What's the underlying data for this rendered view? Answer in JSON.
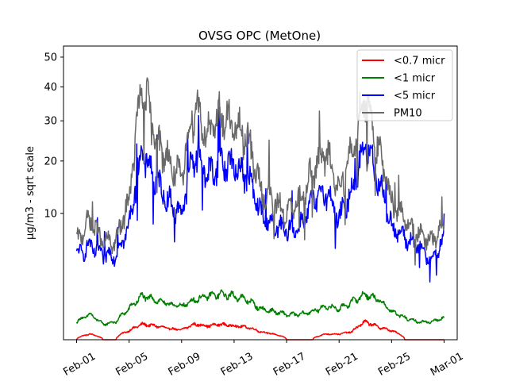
{
  "chart_data": {
    "type": "line",
    "title": "OVSG OPC (MetOne)",
    "xlabel": "",
    "ylabel": "µg/m3 - sqrt scale",
    "y_scale": "sqrt",
    "ylim": [
      0,
      54
    ],
    "xlim": [
      "2021-01-31",
      "2021-03-02"
    ],
    "y_ticks": [
      10,
      20,
      30,
      40,
      50
    ],
    "x_ticks": [
      {
        "date": "2021-02-01",
        "label": "Feb-01"
      },
      {
        "date": "2021-02-05",
        "label": "Feb-05"
      },
      {
        "date": "2021-02-09",
        "label": "Feb-09"
      },
      {
        "date": "2021-02-13",
        "label": "Feb-13"
      },
      {
        "date": "2021-02-17",
        "label": "Feb-17"
      },
      {
        "date": "2021-02-21",
        "label": "Feb-21"
      },
      {
        "date": "2021-02-25",
        "label": "Feb-25"
      },
      {
        "date": "2021-03-01",
        "label": "Mar-01"
      }
    ],
    "grid": false,
    "legend_position": "top-right",
    "series": [
      {
        "name": "<0.7 micr",
        "color": "#ff0000",
        "x": [
          "2021-02-01",
          "2021-02-02",
          "2021-02-03",
          "2021-02-04",
          "2021-02-05",
          "2021-02-06",
          "2021-02-07",
          "2021-02-08",
          "2021-02-09",
          "2021-02-10",
          "2021-02-11",
          "2021-02-12",
          "2021-02-13",
          "2021-02-14",
          "2021-02-15",
          "2021-02-16",
          "2021-02-17",
          "2021-02-18",
          "2021-02-19",
          "2021-02-20",
          "2021-02-21",
          "2021-02-22",
          "2021-02-23",
          "2021-02-24",
          "2021-02-25",
          "2021-02-26",
          "2021-02-27",
          "2021-02-28",
          "2021-03-01"
        ],
        "values": [
          0.0,
          0.02,
          0.0,
          0.0,
          0.05,
          0.15,
          0.12,
          0.08,
          0.06,
          0.15,
          0.12,
          0.15,
          0.12,
          0.1,
          0.04,
          0.02,
          0.0,
          0.0,
          0.0,
          0.02,
          0.02,
          0.04,
          0.2,
          0.1,
          0.05,
          0.0,
          0.0,
          0.0,
          0.0
        ]
      },
      {
        "name": "<1 micr",
        "color": "#008000",
        "x": [
          "2021-02-01",
          "2021-02-02",
          "2021-02-03",
          "2021-02-04",
          "2021-02-05",
          "2021-02-06",
          "2021-02-07",
          "2021-02-08",
          "2021-02-09",
          "2021-02-10",
          "2021-02-11",
          "2021-02-12",
          "2021-02-13",
          "2021-02-14",
          "2021-02-15",
          "2021-02-16",
          "2021-02-17",
          "2021-02-18",
          "2021-02-19",
          "2021-02-20",
          "2021-02-21",
          "2021-02-22",
          "2021-02-23",
          "2021-02-24",
          "2021-02-25",
          "2021-02-26",
          "2021-02-27",
          "2021-02-28",
          "2021-03-01"
        ],
        "values": [
          0.2,
          0.4,
          0.15,
          0.2,
          0.6,
          1.2,
          1.0,
          0.8,
          0.7,
          1.0,
          1.2,
          1.3,
          1.2,
          1.0,
          0.6,
          0.5,
          0.4,
          0.4,
          0.5,
          0.7,
          0.6,
          0.9,
          1.3,
          1.0,
          0.5,
          0.3,
          0.2,
          0.2,
          0.3
        ]
      },
      {
        "name": "<5 micr",
        "color": "#0000ff",
        "x": [
          "2021-02-01",
          "2021-02-02",
          "2021-02-03",
          "2021-02-04",
          "2021-02-05",
          "2021-02-06",
          "2021-02-07",
          "2021-02-08",
          "2021-02-09",
          "2021-02-10",
          "2021-02-11",
          "2021-02-12",
          "2021-02-13",
          "2021-02-14",
          "2021-02-15",
          "2021-02-16",
          "2021-02-17",
          "2021-02-18",
          "2021-02-19",
          "2021-02-20",
          "2021-02-21",
          "2021-02-22",
          "2021-02-23",
          "2021-02-24",
          "2021-02-25",
          "2021-02-26",
          "2021-02-27",
          "2021-02-28",
          "2021-03-01"
        ],
        "values": [
          4.5,
          5.5,
          4.5,
          4.5,
          8.0,
          22.0,
          16.0,
          12.0,
          10.0,
          22.0,
          17.0,
          20.0,
          19.0,
          17.0,
          10.0,
          8.0,
          7.5,
          8.0,
          12.0,
          14.0,
          9.0,
          14.0,
          24.0,
          16.0,
          8.0,
          6.5,
          5.5,
          4.0,
          6.0
        ]
      },
      {
        "name": "PM10",
        "color": "#696969",
        "x": [
          "2021-02-01",
          "2021-02-02",
          "2021-02-03",
          "2021-02-04",
          "2021-02-05",
          "2021-02-06",
          "2021-02-07",
          "2021-02-08",
          "2021-02-09",
          "2021-02-10",
          "2021-02-11",
          "2021-02-12",
          "2021-02-13",
          "2021-02-14",
          "2021-02-15",
          "2021-02-16",
          "2021-02-17",
          "2021-02-18",
          "2021-02-19",
          "2021-02-20",
          "2021-02-21",
          "2021-02-22",
          "2021-02-23",
          "2021-02-24",
          "2021-02-25",
          "2021-02-26",
          "2021-02-27",
          "2021-02-28",
          "2021-03-01"
        ],
        "values": [
          6.0,
          9.0,
          6.0,
          6.0,
          12.0,
          40.0,
          26.0,
          20.0,
          16.0,
          35.0,
          26.0,
          32.0,
          28.0,
          26.0,
          14.0,
          12.0,
          10.0,
          12.0,
          18.0,
          22.0,
          14.0,
          22.0,
          38.0,
          22.0,
          12.0,
          9.0,
          7.0,
          6.0,
          8.0
        ]
      }
    ]
  }
}
